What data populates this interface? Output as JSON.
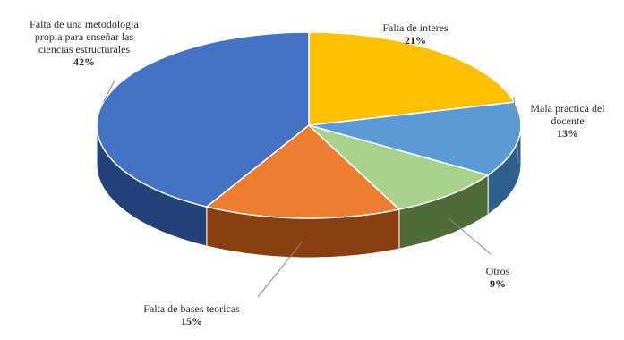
{
  "chart_data": {
    "type": "pie",
    "style": "3d",
    "slices": [
      {
        "label": "Falta de interes",
        "value": 21,
        "pct_label": "21%",
        "color": "#FFC000",
        "side_color": "#B38600"
      },
      {
        "label": "Mala practica del docente",
        "value": 13,
        "pct_label": "13%",
        "color": "#5B9BD5",
        "side_color": "#2E5F8F"
      },
      {
        "label": "Otros",
        "value": 9,
        "pct_label": "9%",
        "color": "#A9D18E",
        "side_color": "#4E6B38"
      },
      {
        "label": "Falta de bases teoricas",
        "value": 15,
        "pct_label": "15%",
        "color": "#ED7D31",
        "side_color": "#8A3F10"
      },
      {
        "label": "Falta de una metodologia propia para enseñar las ciencias estructurales",
        "value": 42,
        "pct_label": "42%",
        "color": "#4472C4",
        "side_color": "#24427A"
      }
    ],
    "legend": "none",
    "data_labels": "outside-with-leader-lines"
  }
}
